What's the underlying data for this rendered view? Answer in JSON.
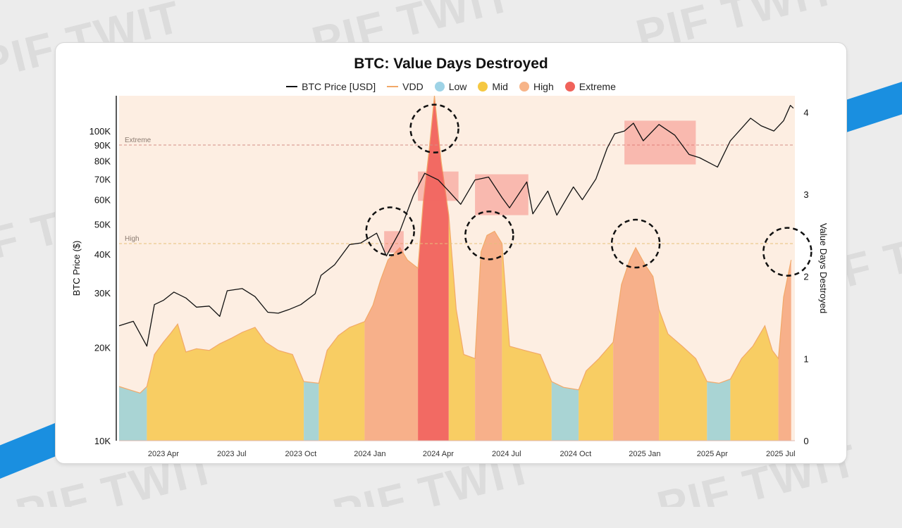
{
  "watermark_text": "PIF TWIT",
  "chart_data": {
    "type": "area",
    "title": "BTC: Value Days Destroyed",
    "ylabel_left": "BTC Price ($)",
    "ylabel_right": "Value Days Destroyed",
    "y_left_scale": "log",
    "y_left_range": [
      10000,
      130000
    ],
    "y_left_ticks": [
      {
        "value": 10000,
        "label": "10K"
      },
      {
        "value": 20000,
        "label": "20K"
      },
      {
        "value": 30000,
        "label": "30K"
      },
      {
        "value": 40000,
        "label": "40K"
      },
      {
        "value": 50000,
        "label": "50K"
      },
      {
        "value": 60000,
        "label": "60K"
      },
      {
        "value": 70000,
        "label": "70K"
      },
      {
        "value": 80000,
        "label": "80K"
      },
      {
        "value": 90000,
        "label": "90K"
      },
      {
        "value": 100000,
        "label": "100K"
      }
    ],
    "y_right_range": [
      0,
      4.2
    ],
    "y_right_ticks": [
      {
        "value": 0,
        "label": "0"
      },
      {
        "value": 1,
        "label": "1"
      },
      {
        "value": 2,
        "label": "2"
      },
      {
        "value": 3,
        "label": "3"
      },
      {
        "value": 4,
        "label": "4"
      }
    ],
    "x_range": [
      "2023-02-01",
      "2025-07-20"
    ],
    "x_ticks": [
      {
        "value": "2023-04-01",
        "label": "2023 Apr"
      },
      {
        "value": "2023-07-01",
        "label": "2023 Jul"
      },
      {
        "value": "2023-10-01",
        "label": "2023 Oct"
      },
      {
        "value": "2024-01-01",
        "label": "2024 Jan"
      },
      {
        "value": "2024-04-01",
        "label": "2024 Apr"
      },
      {
        "value": "2024-07-01",
        "label": "2024 Jul"
      },
      {
        "value": "2024-10-01",
        "label": "2024 Oct"
      },
      {
        "value": "2025-01-01",
        "label": "2025 Jan"
      },
      {
        "value": "2025-04-01",
        "label": "2025 Apr"
      },
      {
        "value": "2025-07-01",
        "label": "2025 Jul"
      }
    ],
    "thresholds": [
      {
        "label": "Extreme",
        "value": 3.6
      },
      {
        "label": "High",
        "value": 2.4
      }
    ],
    "legend": [
      {
        "name": "BTC Price [USD]",
        "kind": "line",
        "color": "#111111"
      },
      {
        "name": "VDD",
        "kind": "line",
        "color": "#f2a868"
      },
      {
        "name": "Low",
        "kind": "dot",
        "color": "#9ed3e6"
      },
      {
        "name": "Mid",
        "kind": "dot",
        "color": "#f5c842"
      },
      {
        "name": "High",
        "kind": "dot",
        "color": "#f7b488"
      },
      {
        "name": "Extreme",
        "kind": "dot",
        "color": "#f0625a"
      }
    ],
    "band_colors": {
      "Low": "#a9d4d4",
      "Mid": "#f8cd63",
      "High": "#f7b08a",
      "Extreme": "#f26a63"
    },
    "vdd_segments": [
      {
        "start": "2023-02-01",
        "end": "2023-03-10",
        "band": "Low"
      },
      {
        "start": "2023-03-10",
        "end": "2023-10-05",
        "band": "Mid"
      },
      {
        "start": "2023-10-05",
        "end": "2023-10-25",
        "band": "Low"
      },
      {
        "start": "2023-10-25",
        "end": "2023-12-25",
        "band": "Mid"
      },
      {
        "start": "2023-12-25",
        "end": "2024-03-05",
        "band": "High"
      },
      {
        "start": "2024-03-05",
        "end": "2024-04-15",
        "band": "Extreme"
      },
      {
        "start": "2024-04-15",
        "end": "2024-05-20",
        "band": "Mid"
      },
      {
        "start": "2024-05-20",
        "end": "2024-06-25",
        "band": "High"
      },
      {
        "start": "2024-06-25",
        "end": "2024-08-30",
        "band": "Mid"
      },
      {
        "start": "2024-08-30",
        "end": "2024-10-05",
        "band": "Low"
      },
      {
        "start": "2024-10-05",
        "end": "2024-11-20",
        "band": "Mid"
      },
      {
        "start": "2024-11-20",
        "end": "2025-01-20",
        "band": "High"
      },
      {
        "start": "2025-01-20",
        "end": "2025-03-25",
        "band": "Mid"
      },
      {
        "start": "2025-03-25",
        "end": "2025-04-25",
        "band": "Low"
      },
      {
        "start": "2025-04-25",
        "end": "2025-06-28",
        "band": "Mid"
      },
      {
        "start": "2025-06-28",
        "end": "2025-07-15",
        "band": "High"
      }
    ],
    "vdd_series": [
      [
        "2023-02-01",
        0.66
      ],
      [
        "2023-02-15",
        0.62
      ],
      [
        "2023-03-01",
        0.58
      ],
      [
        "2023-03-10",
        0.66
      ],
      [
        "2023-03-20",
        1.05
      ],
      [
        "2023-04-01",
        1.2
      ],
      [
        "2023-04-10",
        1.3
      ],
      [
        "2023-04-20",
        1.42
      ],
      [
        "2023-05-01",
        1.08
      ],
      [
        "2023-05-15",
        1.12
      ],
      [
        "2023-06-01",
        1.1
      ],
      [
        "2023-06-15",
        1.18
      ],
      [
        "2023-07-01",
        1.25
      ],
      [
        "2023-07-15",
        1.32
      ],
      [
        "2023-08-01",
        1.38
      ],
      [
        "2023-08-15",
        1.2
      ],
      [
        "2023-09-01",
        1.1
      ],
      [
        "2023-09-20",
        1.05
      ],
      [
        "2023-10-05",
        0.72
      ],
      [
        "2023-10-25",
        0.7
      ],
      [
        "2023-11-05",
        1.1
      ],
      [
        "2023-11-20",
        1.28
      ],
      [
        "2023-12-05",
        1.38
      ],
      [
        "2023-12-25",
        1.45
      ],
      [
        "2024-01-05",
        1.65
      ],
      [
        "2024-01-15",
        1.95
      ],
      [
        "2024-01-25",
        2.2
      ],
      [
        "2024-02-10",
        2.35
      ],
      [
        "2024-02-20",
        2.2
      ],
      [
        "2024-03-05",
        2.1
      ],
      [
        "2024-03-12",
        2.9
      ],
      [
        "2024-03-20",
        3.55
      ],
      [
        "2024-03-27",
        4.2
      ],
      [
        "2024-04-05",
        3.4
      ],
      [
        "2024-04-15",
        2.75
      ],
      [
        "2024-04-25",
        1.6
      ],
      [
        "2024-05-05",
        1.05
      ],
      [
        "2024-05-20",
        1.0
      ],
      [
        "2024-05-28",
        2.3
      ],
      [
        "2024-06-05",
        2.5
      ],
      [
        "2024-06-15",
        2.55
      ],
      [
        "2024-06-25",
        2.4
      ],
      [
        "2024-07-05",
        1.15
      ],
      [
        "2024-07-25",
        1.1
      ],
      [
        "2024-08-15",
        1.05
      ],
      [
        "2024-08-30",
        0.72
      ],
      [
        "2024-09-15",
        0.65
      ],
      [
        "2024-10-05",
        0.62
      ],
      [
        "2024-10-15",
        0.85
      ],
      [
        "2024-11-01",
        1.0
      ],
      [
        "2024-11-20",
        1.2
      ],
      [
        "2024-12-01",
        1.9
      ],
      [
        "2024-12-12",
        2.2
      ],
      [
        "2024-12-20",
        2.35
      ],
      [
        "2025-01-01",
        2.15
      ],
      [
        "2025-01-12",
        2.0
      ],
      [
        "2025-01-20",
        1.6
      ],
      [
        "2025-02-01",
        1.3
      ],
      [
        "2025-02-20",
        1.15
      ],
      [
        "2025-03-10",
        1.0
      ],
      [
        "2025-03-25",
        0.72
      ],
      [
        "2025-04-10",
        0.7
      ],
      [
        "2025-04-25",
        0.75
      ],
      [
        "2025-05-10",
        1.0
      ],
      [
        "2025-05-25",
        1.15
      ],
      [
        "2025-06-10",
        1.4
      ],
      [
        "2025-06-20",
        1.1
      ],
      [
        "2025-06-28",
        1.0
      ],
      [
        "2025-07-05",
        1.75
      ],
      [
        "2025-07-15",
        2.2
      ]
    ],
    "price_series": [
      [
        "2023-02-01",
        23500
      ],
      [
        "2023-02-20",
        24300
      ],
      [
        "2023-03-10",
        20200
      ],
      [
        "2023-03-20",
        27500
      ],
      [
        "2023-04-01",
        28400
      ],
      [
        "2023-04-15",
        30200
      ],
      [
        "2023-05-01",
        28900
      ],
      [
        "2023-05-15",
        27000
      ],
      [
        "2023-06-01",
        27200
      ],
      [
        "2023-06-15",
        25200
      ],
      [
        "2023-06-25",
        30500
      ],
      [
        "2023-07-15",
        31000
      ],
      [
        "2023-08-01",
        29200
      ],
      [
        "2023-08-18",
        26000
      ],
      [
        "2023-09-01",
        25800
      ],
      [
        "2023-09-15",
        26500
      ],
      [
        "2023-10-01",
        27500
      ],
      [
        "2023-10-20",
        29800
      ],
      [
        "2023-10-28",
        34200
      ],
      [
        "2023-11-15",
        37000
      ],
      [
        "2023-12-05",
        43000
      ],
      [
        "2023-12-20",
        43500
      ],
      [
        "2024-01-10",
        46800
      ],
      [
        "2024-01-23",
        39500
      ],
      [
        "2024-02-10",
        47500
      ],
      [
        "2024-02-28",
        62000
      ],
      [
        "2024-03-14",
        73000
      ],
      [
        "2024-04-01",
        69500
      ],
      [
        "2024-04-15",
        64000
      ],
      [
        "2024-05-01",
        58000
      ],
      [
        "2024-05-20",
        69500
      ],
      [
        "2024-06-07",
        71000
      ],
      [
        "2024-06-25",
        61000
      ],
      [
        "2024-07-05",
        56500
      ],
      [
        "2024-07-28",
        68500
      ],
      [
        "2024-08-05",
        54000
      ],
      [
        "2024-08-25",
        64000
      ],
      [
        "2024-09-06",
        53500
      ],
      [
        "2024-09-28",
        66000
      ],
      [
        "2024-10-10",
        60000
      ],
      [
        "2024-10-28",
        70000
      ],
      [
        "2024-11-12",
        88000
      ],
      [
        "2024-11-22",
        98000
      ],
      [
        "2024-12-05",
        100000
      ],
      [
        "2024-12-17",
        106000
      ],
      [
        "2024-12-30",
        93000
      ],
      [
        "2025-01-20",
        105000
      ],
      [
        "2025-02-10",
        97000
      ],
      [
        "2025-03-01",
        84000
      ],
      [
        "2025-03-15",
        82000
      ],
      [
        "2025-04-08",
        76500
      ],
      [
        "2025-04-25",
        93000
      ],
      [
        "2025-05-22",
        110000
      ],
      [
        "2025-06-05",
        104000
      ],
      [
        "2025-06-22",
        100000
      ],
      [
        "2025-07-05",
        108000
      ],
      [
        "2025-07-14",
        121000
      ],
      [
        "2025-07-18",
        118500
      ]
    ],
    "highlight_boxes": [
      {
        "start": "2024-01-20",
        "end": "2024-02-15",
        "price_low": 40500,
        "price_high": 47500
      },
      {
        "start": "2024-03-05",
        "end": "2024-04-28",
        "price_low": 59500,
        "price_high": 74000
      },
      {
        "start": "2024-05-20",
        "end": "2024-07-30",
        "price_low": 53500,
        "price_high": 72500
      },
      {
        "start": "2024-12-05",
        "end": "2025-03-10",
        "price_low": 78000,
        "price_high": 108000
      }
    ],
    "circled_peaks": [
      {
        "date": "2024-01-28",
        "vdd": 2.55
      },
      {
        "date": "2024-03-27",
        "vdd": 3.8
      },
      {
        "date": "2024-06-08",
        "vdd": 2.5
      },
      {
        "date": "2024-12-20",
        "vdd": 2.4
      },
      {
        "date": "2025-07-10",
        "vdd": 2.3
      }
    ]
  }
}
